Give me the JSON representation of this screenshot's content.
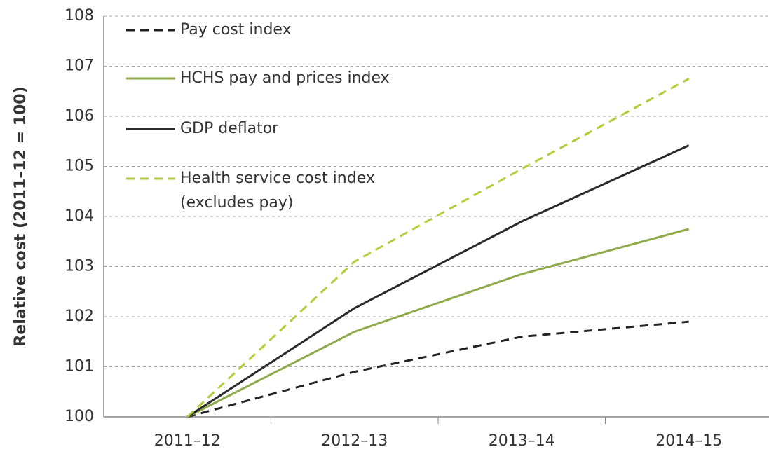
{
  "chart_data": {
    "type": "line",
    "y_label": "Relative cost (2011–12 = 100)",
    "categories": [
      "2011–12",
      "2012–13",
      "2013–14",
      "2014–15"
    ],
    "series": [
      {
        "name": "Pay cost index",
        "color": "#222222",
        "dashed": true,
        "values": [
          100,
          100.9,
          101.6,
          101.9
        ]
      },
      {
        "name": "HCHS pay and prices index",
        "color": "#8faa4a",
        "dashed": false,
        "values": [
          100,
          101.7,
          102.85,
          103.75
        ]
      },
      {
        "name": "GDP deflator",
        "color": "#2b2b2b",
        "dashed": false,
        "values": [
          100,
          102.17,
          103.9,
          105.42
        ]
      },
      {
        "name": "Health service cost index\n(excludes pay)",
        "color": "#b5cc3a",
        "dashed": true,
        "values": [
          100,
          103.1,
          104.95,
          106.75
        ]
      }
    ],
    "ylim": [
      100,
      108
    ],
    "yticks": [
      100,
      101,
      102,
      103,
      104,
      105,
      106,
      107,
      108
    ],
    "grid": true
  }
}
